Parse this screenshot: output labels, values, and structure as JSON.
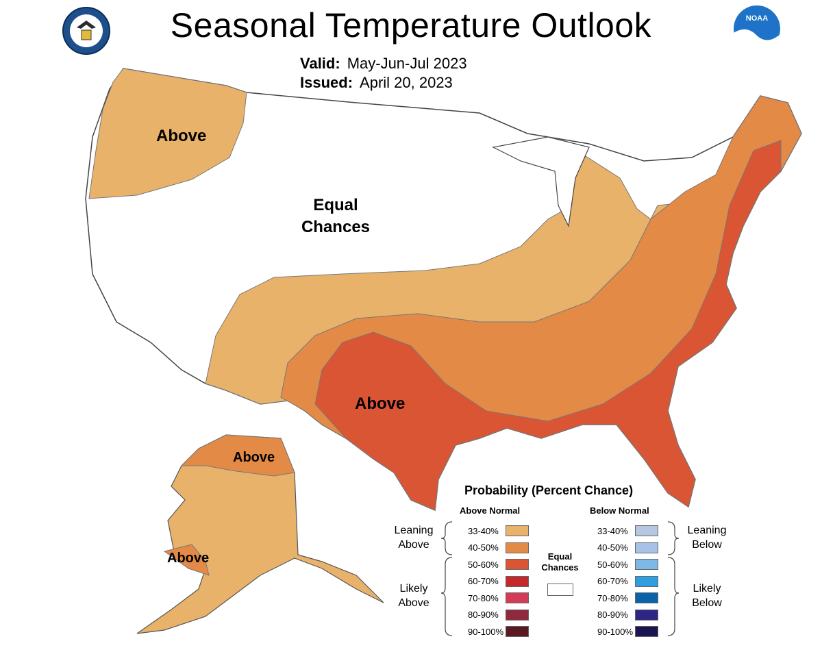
{
  "header": {
    "title": "Seasonal Temperature Outlook",
    "valid_label": "Valid:",
    "valid_value": "May-Jun-Jul 2023",
    "issued_label": "Issued:",
    "issued_value": "April 20, 2023"
  },
  "logos": {
    "left": {
      "icon": "department-of-commerce-seal-icon"
    },
    "right": {
      "icon": "noaa-logo-icon",
      "text": "NOAA"
    }
  },
  "map_labels": {
    "northwest": "Above",
    "central_line1": "Equal",
    "central_line2": "Chances",
    "south": "Above",
    "alaska_north": "Above",
    "alaska_southwest": "Above"
  },
  "legend": {
    "title": "Probability (Percent Chance)",
    "above_heading": "Above Normal",
    "below_heading": "Below Normal",
    "leaning_above": [
      "Leaning",
      "Above"
    ],
    "likely_above": [
      "Likely",
      "Above"
    ],
    "leaning_below": [
      "Leaning",
      "Below"
    ],
    "likely_below": [
      "Likely",
      "Below"
    ],
    "equal_chances": [
      "Equal",
      "Chances"
    ],
    "above_classes": [
      {
        "range": "33-40%",
        "color": "#e8b26b"
      },
      {
        "range": "40-50%",
        "color": "#e38a47"
      },
      {
        "range": "50-60%",
        "color": "#da5533"
      },
      {
        "range": "60-70%",
        "color": "#c52a2a"
      },
      {
        "range": "70-80%",
        "color": "#d43b56"
      },
      {
        "range": "80-90%",
        "color": "#8e2a3e"
      },
      {
        "range": "90-100%",
        "color": "#5a1a22"
      }
    ],
    "below_classes": [
      {
        "range": "33-40%",
        "color": "#b7c7e2"
      },
      {
        "range": "40-50%",
        "color": "#a6c2e6"
      },
      {
        "range": "50-60%",
        "color": "#7db8e6"
      },
      {
        "range": "60-70%",
        "color": "#2f9fe0"
      },
      {
        "range": "70-80%",
        "color": "#0a63a8"
      },
      {
        "range": "80-90%",
        "color": "#2e2684"
      },
      {
        "range": "90-100%",
        "color": "#1a1550"
      }
    ]
  }
}
